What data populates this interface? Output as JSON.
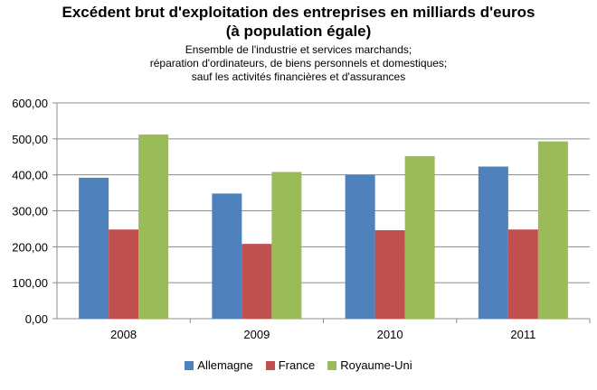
{
  "chart_data": {
    "type": "bar",
    "title": [
      "Excédent brut d'exploitation des entreprises en milliards d'euros",
      "(à population  égale)"
    ],
    "subtitle": [
      "Ensemble de l'industrie et services marchands;",
      "réparation d'ordinateurs, de biens personnels et domestiques;",
      "sauf les activités financières et d'assurances"
    ],
    "categories": [
      "2008",
      "2009",
      "2010",
      "2011"
    ],
    "series": [
      {
        "name": "Allemagne",
        "color": "#4f81bd",
        "values": [
          392,
          348,
          400,
          423
        ]
      },
      {
        "name": "France",
        "color": "#c0504d",
        "values": [
          248,
          208,
          246,
          248
        ]
      },
      {
        "name": "Royaume-Uni",
        "color": "#9bbb59",
        "values": [
          512,
          408,
          452,
          493
        ]
      }
    ],
    "ylim": [
      0,
      600
    ],
    "yticks": [
      "0,00",
      "100,00",
      "200,00",
      "300,00",
      "400,00",
      "500,00",
      "600,00"
    ],
    "grid": true,
    "legend_position": "bottom",
    "xlabel": "",
    "ylabel": ""
  }
}
